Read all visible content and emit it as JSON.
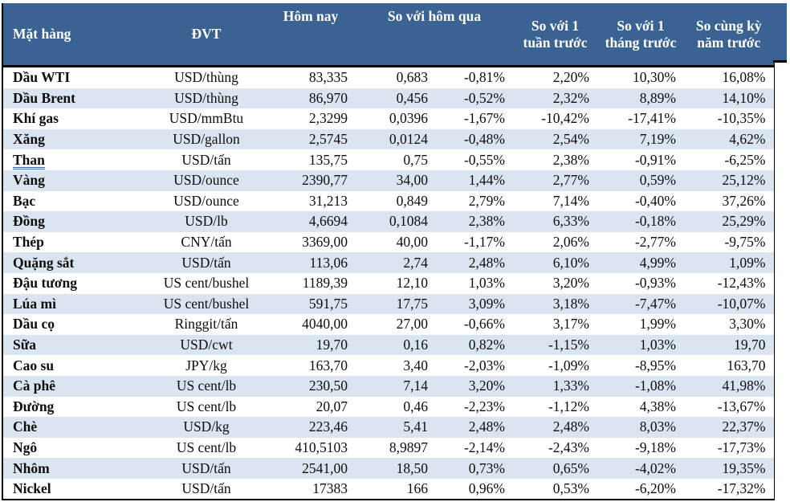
{
  "colors": {
    "header_bg": "#3a6292",
    "header_text": "#ffffff",
    "alt_row_bg": "#dbe5f1",
    "border": "#000000",
    "link_underline": "#3a66a8"
  },
  "table": {
    "headers": {
      "commodity": "Mặt hàng",
      "unit": "ĐVT",
      "today": "Hôm nay",
      "vs_yesterday": "So với hôm qua",
      "vs_week": "So với 1 tuần trước",
      "vs_month": "So với 1 tháng trước",
      "vs_year": "So cùng kỳ năm trước"
    },
    "rows": [
      {
        "name": "Dầu WTI",
        "unit": "USD/thùng",
        "today": "83,335",
        "change_abs": "0,683",
        "change_pct": "-0,81%",
        "week_pct": "2,20%",
        "month_pct": "10,30%",
        "year_pct": "16,08%"
      },
      {
        "name": "Dầu Brent",
        "unit": "USD/thùng",
        "today": "86,970",
        "change_abs": "0,456",
        "change_pct": "-0,52%",
        "week_pct": "2,32%",
        "month_pct": "8,89%",
        "year_pct": "14,10%"
      },
      {
        "name": "Khí gas",
        "unit": "USD/mmBtu",
        "today": "2,3299",
        "change_abs": "0,0396",
        "change_pct": "-1,67%",
        "week_pct": "-10,42%",
        "month_pct": "-17,41%",
        "year_pct": "-10,35%"
      },
      {
        "name": "Xăng",
        "unit": "USD/gallon",
        "today": "2,5745",
        "change_abs": "0,0124",
        "change_pct": "-0,48%",
        "week_pct": "2,54%",
        "month_pct": "7,19%",
        "year_pct": "4,62%"
      },
      {
        "name": "Than",
        "unit": "USD/tấn",
        "today": "135,75",
        "change_abs": "0,75",
        "change_pct": "-0,55%",
        "week_pct": "2,38%",
        "month_pct": "-0,91%",
        "year_pct": "-6,25%",
        "link": true
      },
      {
        "name": "Vàng",
        "unit": "USD/ounce",
        "today": "2390,77",
        "change_abs": "34,00",
        "change_pct": "1,44%",
        "week_pct": "2,77%",
        "month_pct": "0,59%",
        "year_pct": "25,12%"
      },
      {
        "name": "Bạc",
        "unit": "USD/ounce",
        "today": "31,213",
        "change_abs": "0,849",
        "change_pct": "2,79%",
        "week_pct": "7,14%",
        "month_pct": "-0,40%",
        "year_pct": "37,26%"
      },
      {
        "name": "Đồng",
        "unit": "USD/lb",
        "today": "4,6694",
        "change_abs": "0,1084",
        "change_pct": "2,38%",
        "week_pct": "6,33%",
        "month_pct": "-0,18%",
        "year_pct": "25,29%"
      },
      {
        "name": "Thép",
        "unit": "CNY/tấn",
        "today": "3369,00",
        "change_abs": "40,00",
        "change_pct": "-1,17%",
        "week_pct": "2,06%",
        "month_pct": "-2,77%",
        "year_pct": "-9,75%"
      },
      {
        "name": "Quặng sắt",
        "unit": "USD/tấn",
        "today": "113,06",
        "change_abs": "2,74",
        "change_pct": "2,48%",
        "week_pct": "6,10%",
        "month_pct": "4,99%",
        "year_pct": "1,09%"
      },
      {
        "name": "Đậu tương",
        "unit": "US cent/bushel",
        "today": "1189,39",
        "change_abs": "12,10",
        "change_pct": "1,03%",
        "week_pct": "3,20%",
        "month_pct": "-0,93%",
        "year_pct": "-12,43%"
      },
      {
        "name": "Lúa mì",
        "unit": "US cent/bushel",
        "today": "591,75",
        "change_abs": "17,75",
        "change_pct": "3,09%",
        "week_pct": "3,18%",
        "month_pct": "-7,47%",
        "year_pct": "-10,07%"
      },
      {
        "name": "Dầu cọ",
        "unit": "Ringgit/tấn",
        "today": "4040,00",
        "change_abs": "27,00",
        "change_pct": "-0,66%",
        "week_pct": "3,17%",
        "month_pct": "1,99%",
        "year_pct": "3,30%"
      },
      {
        "name": "Sữa",
        "unit": "USD/cwt",
        "today": "19,70",
        "change_abs": "0,16",
        "change_pct": "0,82%",
        "week_pct": "-1,15%",
        "month_pct": "1,03%",
        "year_pct": "19,70"
      },
      {
        "name": "Cao su",
        "unit": "JPY/kg",
        "today": "163,70",
        "change_abs": "3,40",
        "change_pct": "-2,03%",
        "week_pct": "-1,09%",
        "month_pct": "-8,95%",
        "year_pct": "163,70"
      },
      {
        "name": "Cà phê",
        "unit": "US cent/lb",
        "today": "230,50",
        "change_abs": "7,14",
        "change_pct": "3,20%",
        "week_pct": "1,33%",
        "month_pct": "-1,08%",
        "year_pct": "41,98%"
      },
      {
        "name": "Đường",
        "unit": "US cent/lb",
        "today": "20,07",
        "change_abs": "0,46",
        "change_pct": "-2,23%",
        "week_pct": "-1,12%",
        "month_pct": "4,38%",
        "year_pct": "-13,67%"
      },
      {
        "name": "Chè",
        "unit": "USD/kg",
        "today": "223,46",
        "change_abs": "5,41",
        "change_pct": "2,48%",
        "week_pct": "2,48%",
        "month_pct": "8,03%",
        "year_pct": "22,37%"
      },
      {
        "name": "Ngô",
        "unit": "US cent/lb",
        "today": "410,5103",
        "change_abs": "8,9897",
        "change_pct": "-2,14%",
        "week_pct": "-2,43%",
        "month_pct": "-9,18%",
        "year_pct": "-17,73%"
      },
      {
        "name": "Nhôm",
        "unit": "USD/tấn",
        "today": "2541,00",
        "change_abs": "18,50",
        "change_pct": "0,73%",
        "week_pct": "0,65%",
        "month_pct": "-4,02%",
        "year_pct": "19,35%"
      },
      {
        "name": "Nickel",
        "unit": "USD/tấn",
        "today": "17383",
        "change_abs": "166",
        "change_pct": "0,96%",
        "week_pct": "0,53%",
        "month_pct": "-6,20%",
        "year_pct": "-17,32%"
      }
    ]
  }
}
